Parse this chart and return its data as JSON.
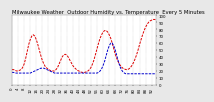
{
  "title": "Milwaukee Weather  Outdoor Humidity vs. Temperature  Every 5 Minutes",
  "bg_color": "#e8e8e8",
  "plot_bg_color": "#ffffff",
  "grid_color": "#aaaaaa",
  "red_line_color": "#dd0000",
  "blue_line_color": "#0000cc",
  "temp_values": [
    22,
    22,
    21,
    20,
    20,
    21,
    22,
    25,
    30,
    38,
    48,
    58,
    65,
    70,
    72,
    70,
    65,
    58,
    50,
    42,
    35,
    30,
    26,
    24,
    22,
    21,
    20,
    20,
    20,
    22,
    25,
    30,
    35,
    40,
    43,
    44,
    43,
    40,
    36,
    32,
    28,
    25,
    23,
    21,
    20,
    19,
    18,
    18,
    18,
    19,
    20,
    22,
    25,
    30,
    36,
    44,
    52,
    60,
    67,
    72,
    76,
    78,
    78,
    76,
    72,
    67,
    60,
    52,
    44,
    38,
    33,
    29,
    26,
    24,
    23,
    22,
    22,
    23,
    25,
    28,
    32,
    37,
    43,
    50,
    58,
    65,
    72,
    78,
    83,
    87,
    90,
    92,
    93,
    94,
    94,
    93
  ],
  "humidity_values": [
    18,
    18,
    17,
    17,
    17,
    17,
    17,
    17,
    17,
    17,
    17,
    17,
    17,
    18,
    19,
    20,
    21,
    22,
    23,
    24,
    24,
    24,
    23,
    22,
    21,
    20,
    19,
    18,
    17,
    17,
    17,
    17,
    17,
    17,
    17,
    17,
    17,
    17,
    17,
    17,
    17,
    17,
    17,
    17,
    17,
    17,
    17,
    17,
    17,
    17,
    17,
    17,
    17,
    17,
    17,
    17,
    17,
    18,
    20,
    23,
    28,
    34,
    42,
    50,
    56,
    60,
    60,
    56,
    50,
    42,
    34,
    27,
    22,
    19,
    17,
    16,
    16,
    16,
    16,
    16,
    16,
    16,
    16,
    16,
    16,
    16,
    16,
    16,
    16,
    16,
    16,
    16,
    16,
    16,
    16,
    16
  ],
  "ylim": [
    0,
    100
  ],
  "title_fontsize": 3.8,
  "tick_fontsize": 2.8,
  "line_width": 0.7,
  "n_points": 96,
  "x_tick_interval": 4,
  "y_ticks": [
    0,
    10,
    20,
    30,
    40,
    50,
    60,
    70,
    80,
    90,
    100
  ]
}
